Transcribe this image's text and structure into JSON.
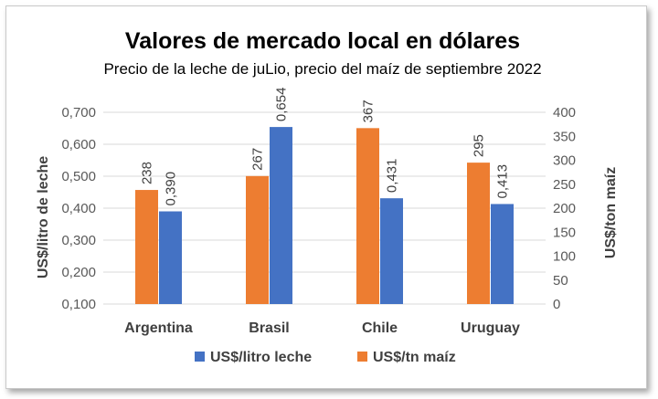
{
  "chart_data": {
    "type": "bar",
    "title": "Valores de mercado local en dólares",
    "subtitle": "Precio de la leche de juLio, precio del maíz de septiembre 2022",
    "categories": [
      "Argentina",
      "Brasil",
      "Chile",
      "Uruguay"
    ],
    "series": [
      {
        "name": "US$/tn maíz",
        "axis": "right",
        "color": "#ED7D31",
        "values": [
          238,
          267,
          367,
          295
        ],
        "labels": [
          "238",
          "267",
          "367",
          "295"
        ]
      },
      {
        "name": "US$/litro leche",
        "axis": "left",
        "color": "#4472C4",
        "values": [
          0.39,
          0.654,
          0.431,
          0.413
        ],
        "labels": [
          "0,390",
          "0,654",
          "0,431",
          "0,413"
        ]
      }
    ],
    "y_left": {
      "label": "US$/litro de leche",
      "range": [
        0.1,
        0.7
      ],
      "ticks": [
        "0,100",
        "0,200",
        "0,300",
        "0,400",
        "0,500",
        "0,600",
        "0,700"
      ]
    },
    "y_right": {
      "label": "US$/ton maíz",
      "range": [
        0,
        400
      ],
      "ticks": [
        "0",
        "50",
        "100",
        "150",
        "200",
        "250",
        "300",
        "350",
        "400"
      ]
    },
    "grid": true,
    "legend": {
      "position": "bottom",
      "items": [
        "US$/litro leche",
        "US$/tn maíz"
      ],
      "colors": [
        "#4472C4",
        "#ED7D31"
      ]
    }
  }
}
